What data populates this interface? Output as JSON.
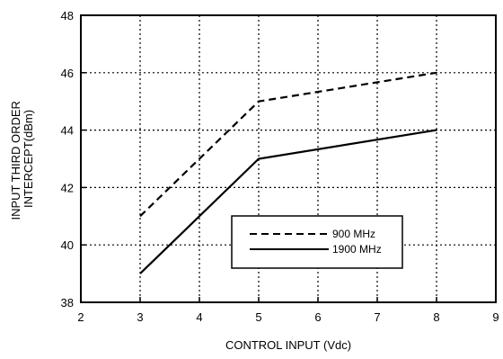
{
  "chart_data": {
    "type": "line",
    "xlabel": "CONTROL INPUT (Vdc)",
    "ylabel_lines": [
      "INPUT THIRD ORDER",
      "INTERCEPT(dBm)"
    ],
    "xlim": [
      2,
      9
    ],
    "ylim": [
      38,
      48
    ],
    "xticks": [
      2,
      3,
      4,
      5,
      6,
      7,
      8,
      9
    ],
    "yticks": [
      38,
      40,
      42,
      44,
      46,
      48
    ],
    "grid": true,
    "legend_position": "lower-right",
    "series": [
      {
        "name": "900 MHz",
        "style": "dashed",
        "color": "#000000",
        "x": [
          3,
          5,
          8
        ],
        "y": [
          41,
          45,
          46
        ]
      },
      {
        "name": "1900 MHz",
        "style": "solid",
        "color": "#000000",
        "x": [
          3,
          5,
          8
        ],
        "y": [
          39,
          43,
          44
        ]
      }
    ]
  }
}
